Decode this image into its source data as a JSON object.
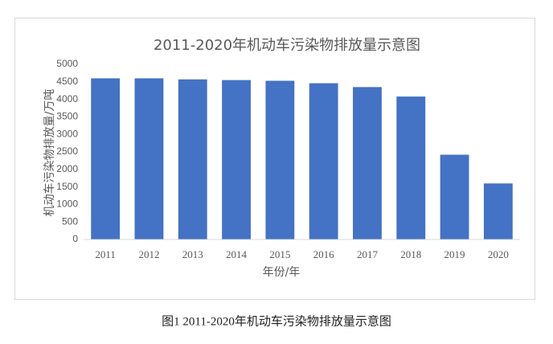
{
  "chart_data": {
    "type": "bar",
    "title": "2011-2020年机动车污染物排放量示意图",
    "x_label": "年份/年",
    "y_label": "机动车污染物排放量/万吨",
    "categories": [
      "2011",
      "2012",
      "2013",
      "2014",
      "2015",
      "2016",
      "2017",
      "2018",
      "2019",
      "2020"
    ],
    "values": [
      4600,
      4600,
      4570,
      4550,
      4530,
      4460,
      4350,
      4080,
      2420,
      1600
    ],
    "color": "#4472c4",
    "ylim": [
      0,
      5000
    ],
    "yticks": [
      0,
      500,
      1000,
      1500,
      2000,
      2500,
      3000,
      3500,
      4000,
      4500,
      5000
    ],
    "grid": false
  },
  "caption": "图1 2011-2020年机动车污染物排放量示意图"
}
